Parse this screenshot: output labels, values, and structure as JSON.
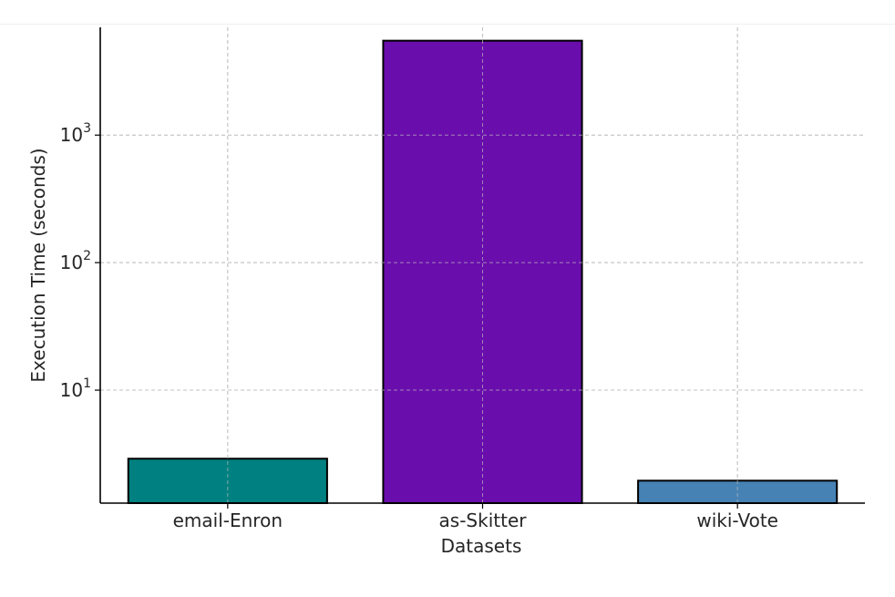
{
  "chart_data": {
    "type": "bar",
    "categories": [
      "email-Enron",
      "as-Skitter",
      "wiki-Vote"
    ],
    "values": [
      2.9,
      5500,
      1.95
    ],
    "colors": [
      "#008080",
      "#6a0dad",
      "#4682b4"
    ],
    "title": "",
    "xlabel": "Datasets",
    "ylabel": "Execution Time (seconds)",
    "yscale": "log",
    "ylim": [
      1.3,
      7000
    ],
    "yticks": [
      {
        "value": 10,
        "base": "10",
        "exp": "1"
      },
      {
        "value": 100,
        "base": "10",
        "exp": "2"
      },
      {
        "value": 1000,
        "base": "10",
        "exp": "3"
      }
    ],
    "grid": true
  }
}
